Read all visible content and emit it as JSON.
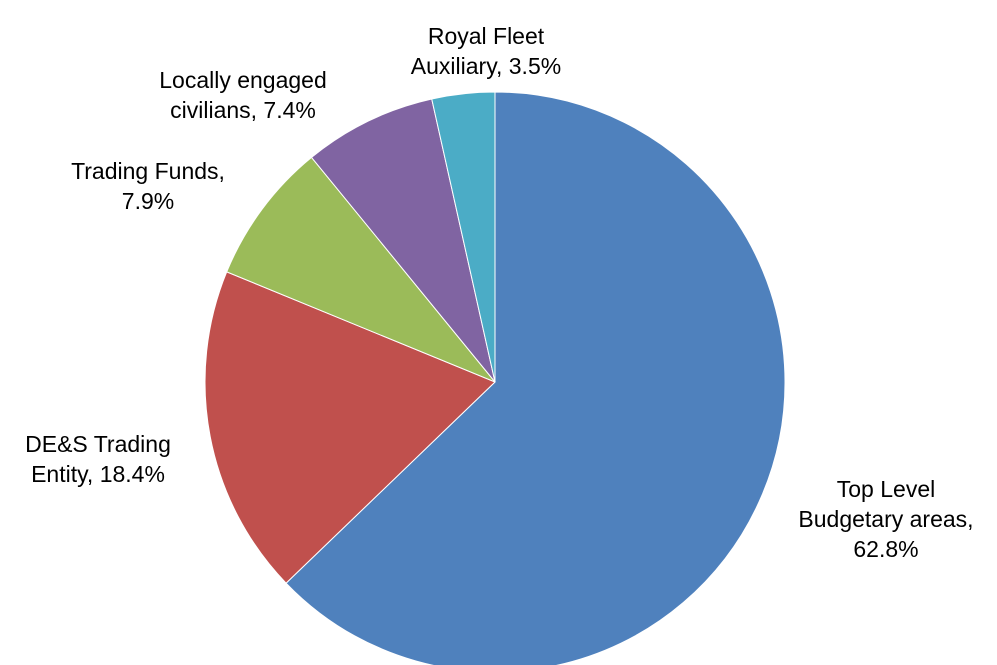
{
  "chart_data": {
    "type": "pie",
    "title": "",
    "start_angle_deg": 0,
    "direction": "clockwise",
    "slices": [
      {
        "label": "Top Level Budgetary areas",
        "value": 62.8,
        "value_label": "62.8%",
        "color": "#4F81BD",
        "label_lines": [
          "Top Level",
          "Budgetary areas,",
          "62.8%"
        ]
      },
      {
        "label": "DE&S Trading Entity",
        "value": 18.4,
        "value_label": "18.4%",
        "color": "#C0504D",
        "label_lines": [
          "DE&S Trading",
          "Entity, 18.4%"
        ]
      },
      {
        "label": "Trading Funds",
        "value": 7.9,
        "value_label": "7.9%",
        "color": "#9BBB59",
        "label_lines": [
          "Trading Funds,",
          "7.9%"
        ]
      },
      {
        "label": "Locally engaged civilians",
        "value": 7.4,
        "value_label": "7.4%",
        "color": "#8064A2",
        "label_lines": [
          "Locally engaged",
          "civilians, 7.4%"
        ]
      },
      {
        "label": "Royal Fleet Auxiliary",
        "value": 3.5,
        "value_label": "3.5%",
        "color": "#4BACC6",
        "label_lines": [
          "Royal Fleet",
          "Auxiliary, 3.5%"
        ]
      }
    ]
  }
}
